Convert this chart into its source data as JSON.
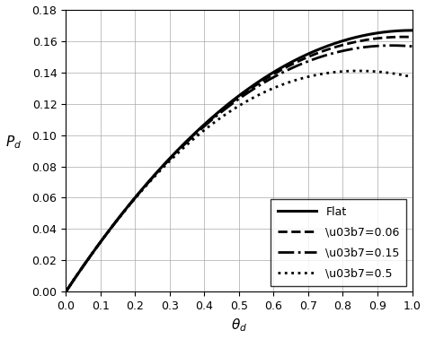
{
  "xlabel": "$\\theta_d$",
  "ylabel": "$P_d$",
  "xlim": [
    0,
    1.0
  ],
  "ylim": [
    0,
    0.18
  ],
  "xticks": [
    0,
    0.1,
    0.2,
    0.3,
    0.4,
    0.5,
    0.6,
    0.7,
    0.8,
    0.9,
    1.0
  ],
  "yticks": [
    0,
    0.02,
    0.04,
    0.06,
    0.08,
    0.1,
    0.12,
    0.14,
    0.16,
    0.18
  ],
  "lines": [
    {
      "label": "Flat",
      "linestyle": "solid",
      "linewidth": 2.2,
      "color": "#000000",
      "eta": 0.0
    },
    {
      "label": "\\u03b7=0.06",
      "linestyle": "dashed",
      "linewidth": 2.0,
      "color": "#000000",
      "eta": 0.06
    },
    {
      "label": "\\u03b7=0.15",
      "linestyle": "dashdot",
      "linewidth": 2.0,
      "color": "#000000",
      "eta": 0.15
    },
    {
      "label": "\\u03b7=0.5",
      "linestyle": "dotted",
      "linewidth": 2.0,
      "color": "#000000",
      "eta": 0.5
    }
  ],
  "legend_loc": "lower right",
  "legend_fontsize": 9,
  "grid": true,
  "background_color": "#ffffff",
  "figsize": [
    4.74,
    3.78
  ],
  "dpi": 100
}
